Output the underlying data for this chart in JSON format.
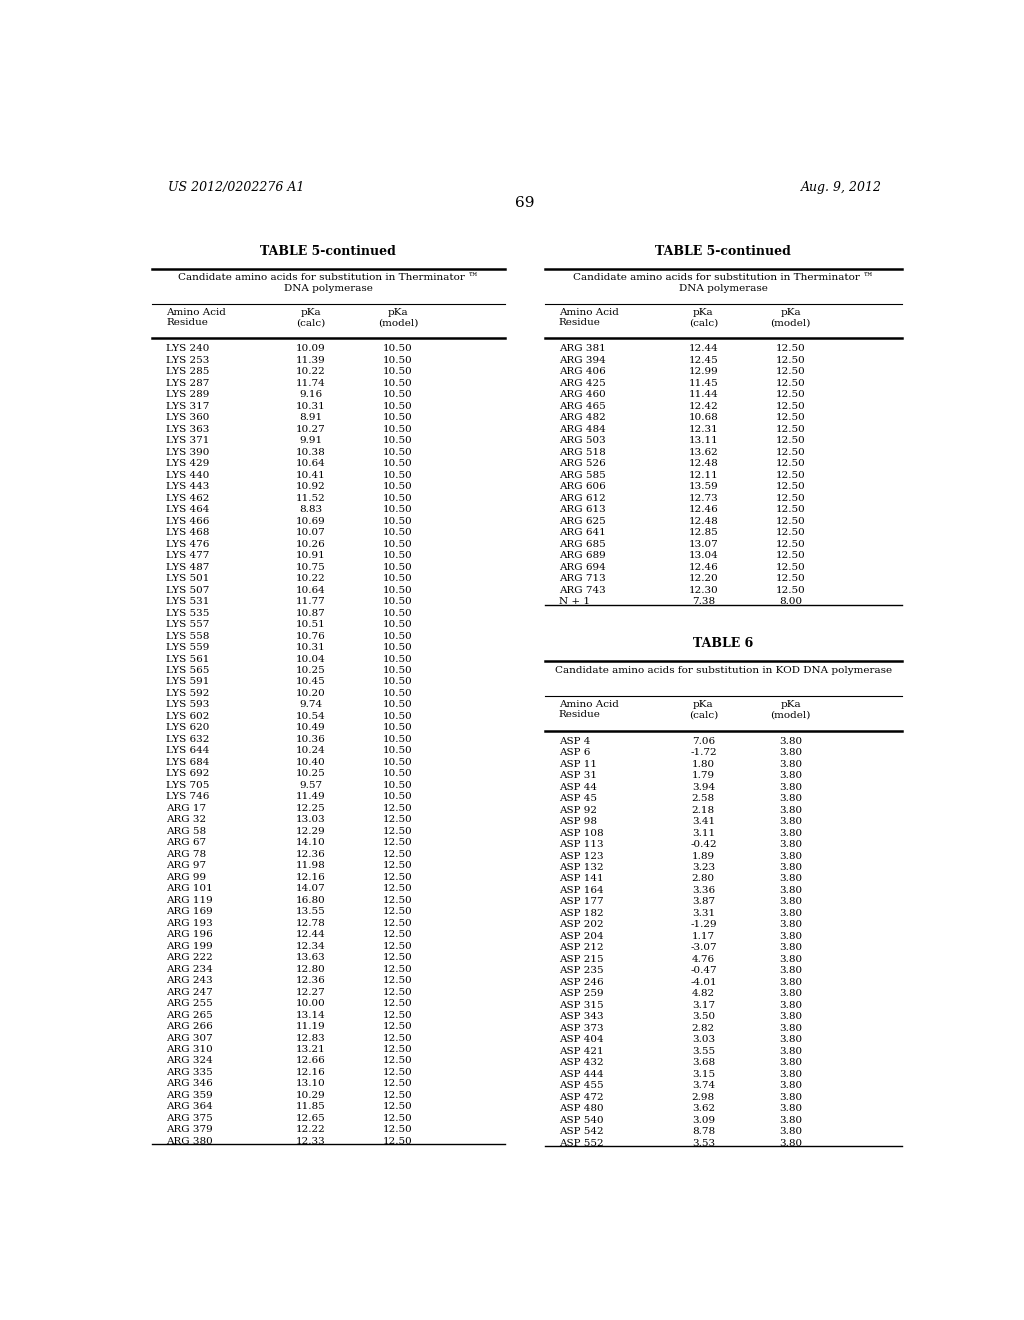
{
  "header_left": "US 2012/0202276 A1",
  "header_right": "Aug. 9, 2012",
  "page_number": "69",
  "table5_title": "TABLE 5-continued",
  "table5_subtitle": "Candidate amino acids for substitution in Therminator ™\nDNA polymerase",
  "table5_col_headers": [
    "Amino Acid\nResidue",
    "pKa\n(calc)",
    "pKa\n(model)"
  ],
  "table5_left_data": [
    [
      "LYS 240",
      "10.09",
      "10.50"
    ],
    [
      "LYS 253",
      "11.39",
      "10.50"
    ],
    [
      "LYS 285",
      "10.22",
      "10.50"
    ],
    [
      "LYS 287",
      "11.74",
      "10.50"
    ],
    [
      "LYS 289",
      "9.16",
      "10.50"
    ],
    [
      "LYS 317",
      "10.31",
      "10.50"
    ],
    [
      "LYS 360",
      "8.91",
      "10.50"
    ],
    [
      "LYS 363",
      "10.27",
      "10.50"
    ],
    [
      "LYS 371",
      "9.91",
      "10.50"
    ],
    [
      "LYS 390",
      "10.38",
      "10.50"
    ],
    [
      "LYS 429",
      "10.64",
      "10.50"
    ],
    [
      "LYS 440",
      "10.41",
      "10.50"
    ],
    [
      "LYS 443",
      "10.92",
      "10.50"
    ],
    [
      "LYS 462",
      "11.52",
      "10.50"
    ],
    [
      "LYS 464",
      "8.83",
      "10.50"
    ],
    [
      "LYS 466",
      "10.69",
      "10.50"
    ],
    [
      "LYS 468",
      "10.07",
      "10.50"
    ],
    [
      "LYS 476",
      "10.26",
      "10.50"
    ],
    [
      "LYS 477",
      "10.91",
      "10.50"
    ],
    [
      "LYS 487",
      "10.75",
      "10.50"
    ],
    [
      "LYS 501",
      "10.22",
      "10.50"
    ],
    [
      "LYS 507",
      "10.64",
      "10.50"
    ],
    [
      "LYS 531",
      "11.77",
      "10.50"
    ],
    [
      "LYS 535",
      "10.87",
      "10.50"
    ],
    [
      "LYS 557",
      "10.51",
      "10.50"
    ],
    [
      "LYS 558",
      "10.76",
      "10.50"
    ],
    [
      "LYS 559",
      "10.31",
      "10.50"
    ],
    [
      "LYS 561",
      "10.04",
      "10.50"
    ],
    [
      "LYS 565",
      "10.25",
      "10.50"
    ],
    [
      "LYS 591",
      "10.45",
      "10.50"
    ],
    [
      "LYS 592",
      "10.20",
      "10.50"
    ],
    [
      "LYS 593",
      "9.74",
      "10.50"
    ],
    [
      "LYS 602",
      "10.54",
      "10.50"
    ],
    [
      "LYS 620",
      "10.49",
      "10.50"
    ],
    [
      "LYS 632",
      "10.36",
      "10.50"
    ],
    [
      "LYS 644",
      "10.24",
      "10.50"
    ],
    [
      "LYS 684",
      "10.40",
      "10.50"
    ],
    [
      "LYS 692",
      "10.25",
      "10.50"
    ],
    [
      "LYS 705",
      "9.57",
      "10.50"
    ],
    [
      "LYS 746",
      "11.49",
      "10.50"
    ],
    [
      "ARG 17",
      "12.25",
      "12.50"
    ],
    [
      "ARG 32",
      "13.03",
      "12.50"
    ],
    [
      "ARG 58",
      "12.29",
      "12.50"
    ],
    [
      "ARG 67",
      "14.10",
      "12.50"
    ],
    [
      "ARG 78",
      "12.36",
      "12.50"
    ],
    [
      "ARG 97",
      "11.98",
      "12.50"
    ],
    [
      "ARG 99",
      "12.16",
      "12.50"
    ],
    [
      "ARG 101",
      "14.07",
      "12.50"
    ],
    [
      "ARG 119",
      "16.80",
      "12.50"
    ],
    [
      "ARG 169",
      "13.55",
      "12.50"
    ],
    [
      "ARG 193",
      "12.78",
      "12.50"
    ],
    [
      "ARG 196",
      "12.44",
      "12.50"
    ],
    [
      "ARG 199",
      "12.34",
      "12.50"
    ],
    [
      "ARG 222",
      "13.63",
      "12.50"
    ],
    [
      "ARG 234",
      "12.80",
      "12.50"
    ],
    [
      "ARG 243",
      "12.36",
      "12.50"
    ],
    [
      "ARG 247",
      "12.27",
      "12.50"
    ],
    [
      "ARG 255",
      "10.00",
      "12.50"
    ],
    [
      "ARG 265",
      "13.14",
      "12.50"
    ],
    [
      "ARG 266",
      "11.19",
      "12.50"
    ],
    [
      "ARG 307",
      "12.83",
      "12.50"
    ],
    [
      "ARG 310",
      "13.21",
      "12.50"
    ],
    [
      "ARG 324",
      "12.66",
      "12.50"
    ],
    [
      "ARG 335",
      "12.16",
      "12.50"
    ],
    [
      "ARG 346",
      "13.10",
      "12.50"
    ],
    [
      "ARG 359",
      "10.29",
      "12.50"
    ],
    [
      "ARG 364",
      "11.85",
      "12.50"
    ],
    [
      "ARG 375",
      "12.65",
      "12.50"
    ],
    [
      "ARG 379",
      "12.22",
      "12.50"
    ],
    [
      "ARG 380",
      "12.33",
      "12.50"
    ]
  ],
  "table5_right_data": [
    [
      "ARG 381",
      "12.44",
      "12.50"
    ],
    [
      "ARG 394",
      "12.45",
      "12.50"
    ],
    [
      "ARG 406",
      "12.99",
      "12.50"
    ],
    [
      "ARG 425",
      "11.45",
      "12.50"
    ],
    [
      "ARG 460",
      "11.44",
      "12.50"
    ],
    [
      "ARG 465",
      "12.42",
      "12.50"
    ],
    [
      "ARG 482",
      "10.68",
      "12.50"
    ],
    [
      "ARG 484",
      "12.31",
      "12.50"
    ],
    [
      "ARG 503",
      "13.11",
      "12.50"
    ],
    [
      "ARG 518",
      "13.62",
      "12.50"
    ],
    [
      "ARG 526",
      "12.48",
      "12.50"
    ],
    [
      "ARG 585",
      "12.11",
      "12.50"
    ],
    [
      "ARG 606",
      "13.59",
      "12.50"
    ],
    [
      "ARG 612",
      "12.73",
      "12.50"
    ],
    [
      "ARG 613",
      "12.46",
      "12.50"
    ],
    [
      "ARG 625",
      "12.48",
      "12.50"
    ],
    [
      "ARG 641",
      "12.85",
      "12.50"
    ],
    [
      "ARG 685",
      "13.07",
      "12.50"
    ],
    [
      "ARG 689",
      "13.04",
      "12.50"
    ],
    [
      "ARG 694",
      "12.46",
      "12.50"
    ],
    [
      "ARG 713",
      "12.20",
      "12.50"
    ],
    [
      "ARG 743",
      "12.30",
      "12.50"
    ],
    [
      "N + 1",
      "7.38",
      "8.00"
    ]
  ],
  "table6_title": "TABLE 6",
  "table6_subtitle": "Candidate amino acids for substitution in KOD DNA polymerase",
  "table6_col_headers": [
    "Amino Acid\nResidue",
    "pKa\n(calc)",
    "pKa\n(model)"
  ],
  "table6_data": [
    [
      "ASP 4",
      "7.06",
      "3.80"
    ],
    [
      "ASP 6",
      "-1.72",
      "3.80"
    ],
    [
      "ASP 11",
      "1.80",
      "3.80"
    ],
    [
      "ASP 31",
      "1.79",
      "3.80"
    ],
    [
      "ASP 44",
      "3.94",
      "3.80"
    ],
    [
      "ASP 45",
      "2.58",
      "3.80"
    ],
    [
      "ASP 92",
      "2.18",
      "3.80"
    ],
    [
      "ASP 98",
      "3.41",
      "3.80"
    ],
    [
      "ASP 108",
      "3.11",
      "3.80"
    ],
    [
      "ASP 113",
      "-0.42",
      "3.80"
    ],
    [
      "ASP 123",
      "1.89",
      "3.80"
    ],
    [
      "ASP 132",
      "3.23",
      "3.80"
    ],
    [
      "ASP 141",
      "2.80",
      "3.80"
    ],
    [
      "ASP 164",
      "3.36",
      "3.80"
    ],
    [
      "ASP 177",
      "3.87",
      "3.80"
    ],
    [
      "ASP 182",
      "3.31",
      "3.80"
    ],
    [
      "ASP 202",
      "-1.29",
      "3.80"
    ],
    [
      "ASP 204",
      "1.17",
      "3.80"
    ],
    [
      "ASP 212",
      "-3.07",
      "3.80"
    ],
    [
      "ASP 215",
      "4.76",
      "3.80"
    ],
    [
      "ASP 235",
      "-0.47",
      "3.80"
    ],
    [
      "ASP 246",
      "-4.01",
      "3.80"
    ],
    [
      "ASP 259",
      "4.82",
      "3.80"
    ],
    [
      "ASP 315",
      "3.17",
      "3.80"
    ],
    [
      "ASP 343",
      "3.50",
      "3.80"
    ],
    [
      "ASP 373",
      "2.82",
      "3.80"
    ],
    [
      "ASP 404",
      "3.03",
      "3.80"
    ],
    [
      "ASP 421",
      "3.55",
      "3.80"
    ],
    [
      "ASP 432",
      "3.68",
      "3.80"
    ],
    [
      "ASP 444",
      "3.15",
      "3.80"
    ],
    [
      "ASP 455",
      "3.74",
      "3.80"
    ],
    [
      "ASP 472",
      "2.98",
      "3.80"
    ],
    [
      "ASP 480",
      "3.62",
      "3.80"
    ],
    [
      "ASP 540",
      "3.09",
      "3.80"
    ],
    [
      "ASP 542",
      "8.78",
      "3.80"
    ],
    [
      "ASP 552",
      "3.53",
      "3.80"
    ]
  ]
}
